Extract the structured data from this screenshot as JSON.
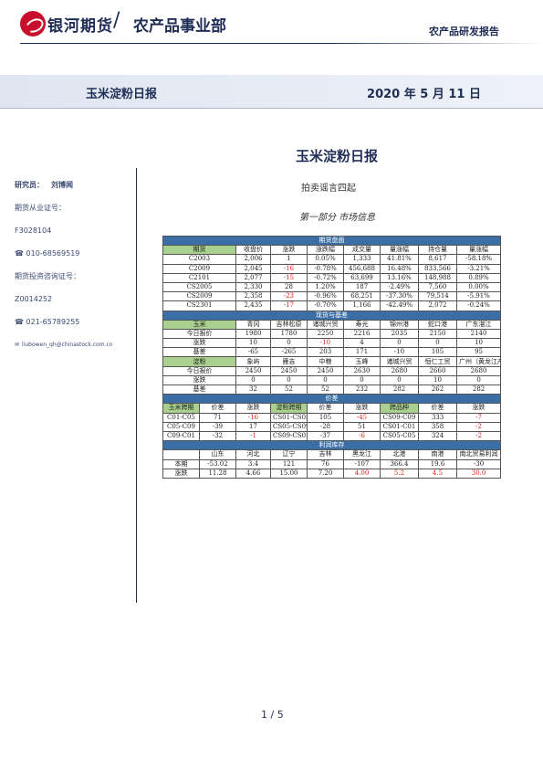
{
  "header": {
    "brand": "银河期货",
    "slash": "/",
    "dept": "农产品事业部",
    "report_type": "农产品研发报告",
    "band_title": "玉米淀粉日报",
    "band_date": "2020 年 5 月 11 日"
  },
  "sidebar": {
    "researcher_label": "研究员：",
    "researcher_name": "刘博闻",
    "license_label": "期货从业证号：",
    "license_no": "F3028104",
    "phone1": "☎ 010-68569519",
    "advisor_label": "期货投资咨询证号：",
    "advisor_no": "Z0014252",
    "phone2": "☎ 021-65789255",
    "email": "liubowen_qh@chinastock.com.cn"
  },
  "main": {
    "title": "玉米淀粉日报",
    "subtitle": "拍卖谣言四起",
    "section": "第一部分   市场信息"
  },
  "table": {
    "futures_title": "期货盘面",
    "futures_header": [
      "期货",
      "收盘价",
      "涨跌",
      "涨跌幅",
      "成交量",
      "量涨幅",
      "持仓量",
      "量涨幅"
    ],
    "futures_rows": [
      [
        "C2003",
        "2,006",
        "1",
        "0.05%",
        "1,333",
        "41.81%",
        "8,617",
        "-58.18%"
      ],
      [
        "C2009",
        "2,045",
        "-16",
        "-0.78%",
        "456,688",
        "16.48%",
        "833,566",
        "-3.21%"
      ],
      [
        "C2101",
        "2,077",
        "-15",
        "-0.72%",
        "63,699",
        "13.16%",
        "148,988",
        "0.89%"
      ],
      [
        "CS2005",
        "2,330",
        "28",
        "1.20%",
        "187",
        "-2.49%",
        "7,560",
        "0.00%"
      ],
      [
        "CS2009",
        "2,358",
        "-23",
        "-0.96%",
        "68,251",
        "-37.30%",
        "79,514",
        "-5.91%"
      ],
      [
        "CS2301",
        "2,435",
        "-17",
        "-0.70%",
        "1,166",
        "-42.49%",
        "2,072",
        "-0.24%"
      ]
    ],
    "spot_title": "现货与基差",
    "corn_header": [
      "玉米",
      "青冈",
      "吉林松原",
      "诸城兴贸",
      "寿光",
      "锦州港",
      "蛇口港",
      "广东湛江"
    ],
    "corn_price": [
      "今日报价",
      "1980",
      "1780",
      "2250",
      "2216",
      "2035",
      "2150",
      "2140"
    ],
    "corn_chg": [
      "涨跌",
      "10",
      "0",
      "-10",
      "4",
      "0",
      "0",
      "10"
    ],
    "corn_basis": [
      "基差",
      "-65",
      "-265",
      "203",
      "171",
      "-10",
      "105",
      "95"
    ],
    "starch_header": [
      "淀粉",
      "象屿",
      "雁吉",
      "中粮",
      "玉峰",
      "诸城兴贸",
      "恒仁工贸",
      "广州（黄龙江产）"
    ],
    "starch_price": [
      "今日报价",
      "2450",
      "2450",
      "2450",
      "2630",
      "2680",
      "2660",
      "2680"
    ],
    "starch_chg": [
      "涨跌",
      "0",
      "0",
      "0",
      "0",
      "0",
      "10",
      "0"
    ],
    "starch_basis": [
      "基差",
      "32",
      "52",
      "52",
      "232",
      "282",
      "262",
      "282"
    ],
    "spread_title": "价差",
    "spread_header": [
      "玉米跨期",
      "价差",
      "涨跌",
      "淀粉跨期",
      "价差",
      "涨跌",
      "跨品种",
      "价差",
      "涨跌"
    ],
    "spread_rows": [
      [
        "C01-C05",
        "71",
        "-16",
        "CS01-CS05",
        "105",
        "-45",
        "CS09-C09",
        "333",
        "-7"
      ],
      [
        "C05-C09",
        "-39",
        "17",
        "CS05-CS09",
        "-28",
        "51",
        "CS01-C01",
        "358",
        "-2"
      ],
      [
        "C09-C01",
        "-32",
        "-1",
        "CS09-CS01",
        "-37",
        "-6",
        "CS05-C05",
        "324",
        "-2"
      ]
    ],
    "profit_title": "利润库存",
    "profit_header": [
      "",
      "山东",
      "河北",
      "辽宁",
      "吉林",
      "黑龙江",
      "北港",
      "南港",
      "南北贸易利润"
    ],
    "profit_rows": [
      [
        "本期",
        "-53.02",
        "3.4",
        "121",
        "76",
        "-107",
        "366.4",
        "19.6",
        "-30"
      ],
      [
        "涨跌",
        "11.28",
        "4.66",
        "15.00",
        "7.20",
        "4.00",
        "5.2",
        "4.5",
        "30.0"
      ]
    ]
  },
  "footer": {
    "page": "1 / 5"
  },
  "colors": {
    "navy": "#1f2d55",
    "header_blue": "#3a6ea5",
    "header_green": "#a9d08e",
    "negative_red": "#e0201b"
  }
}
